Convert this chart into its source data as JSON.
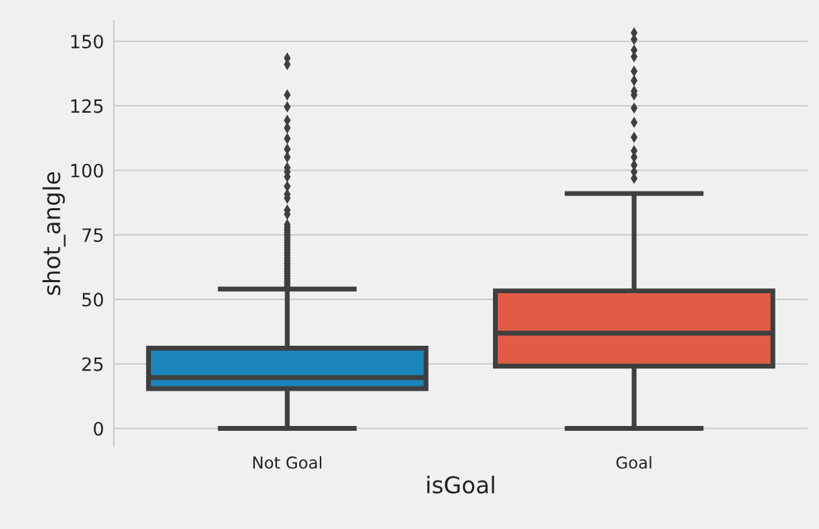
{
  "chart_data": {
    "type": "box",
    "xlabel": "isGoal",
    "ylabel": "shot_angle",
    "categories": [
      "Not Goal",
      "Goal"
    ],
    "colors": [
      "#1a84bc",
      "#e25c45"
    ],
    "boxes": [
      {
        "low": 0,
        "q1": 15.4,
        "median": 19.7,
        "q3": 31.1,
        "high": 54,
        "outliers": [
          55,
          56,
          57,
          58,
          59,
          60,
          61,
          62,
          63,
          64,
          65,
          66,
          67,
          68,
          69,
          70,
          71,
          72,
          73,
          74,
          75,
          76,
          77,
          78,
          79,
          83,
          84.6,
          89.2,
          90.7,
          93.8,
          97.5,
          99.4,
          101,
          105.1,
          108.2,
          112.3,
          116.4,
          119.4,
          124.6,
          129.2,
          141,
          143.5
        ]
      },
      {
        "low": 0,
        "q1": 24.1,
        "median": 36.9,
        "q3": 53.3,
        "high": 91,
        "outliers": [
          96.9,
          99.4,
          102,
          105.1,
          107.6,
          112.8,
          118.6,
          124.1,
          129.2,
          130.7,
          134.8,
          138.4,
          144,
          146.6,
          150.7,
          153.3
        ]
      }
    ],
    "ylim": [
      -7,
      158
    ],
    "yticks": [
      0,
      25,
      50,
      75,
      100,
      125,
      150
    ],
    "grid": "y",
    "marker": "diamond"
  }
}
